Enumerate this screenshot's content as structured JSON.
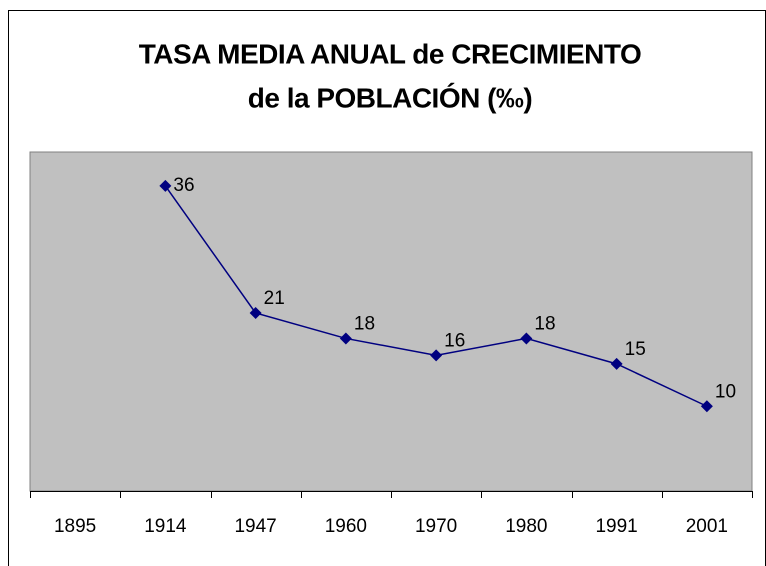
{
  "chart_data": {
    "type": "line",
    "title": [
      "TASA MEDIA ANUAL de CRECIMIENTO",
      "de la POBLACIÓN (‰)"
    ],
    "categories": [
      "1895",
      "1914",
      "1947",
      "1960",
      "1970",
      "1980",
      "1991",
      "2001"
    ],
    "values": [
      null,
      36,
      21,
      18,
      16,
      18,
      15,
      10
    ],
    "color": "#000080",
    "ylim": [
      0,
      40
    ],
    "data_labels": true
  }
}
